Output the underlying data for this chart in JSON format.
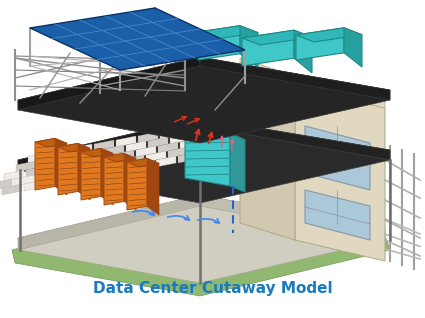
{
  "title": "Data Center Cutaway Model",
  "title_color": "#1a7abf",
  "title_fontsize": 11,
  "bg_color": "#ffffff",
  "figsize": [
    4.25,
    3.18
  ],
  "dpi": 100,
  "colors": {
    "solar_blue": "#1a5fa8",
    "solar_grid": "#4488cc",
    "teal_unit": "#40c8c8",
    "teal_dark": "#208888",
    "teal_side": "#309898",
    "orange_rack": "#e07820",
    "orange_dark": "#a04810",
    "orange_side": "#c06010",
    "dark_floor": "#2a2a2a",
    "dark_floor2": "#1a1a1a",
    "tile_light": "#f0ede8",
    "tile_mid": "#d0cdc8",
    "concrete": "#d0cec0",
    "green_ground": "#90b870",
    "beige_wall": "#e0d8c0",
    "beige_wall2": "#d0c8b0",
    "frame_gray": "#909090",
    "frame_dark": "#606060",
    "window_blue": "#aac8d8",
    "red_arrow": "#dd3322",
    "pink_arrow": "#dd6688",
    "blue_arrow": "#4488ee",
    "pipe_blue": "#2266cc"
  }
}
